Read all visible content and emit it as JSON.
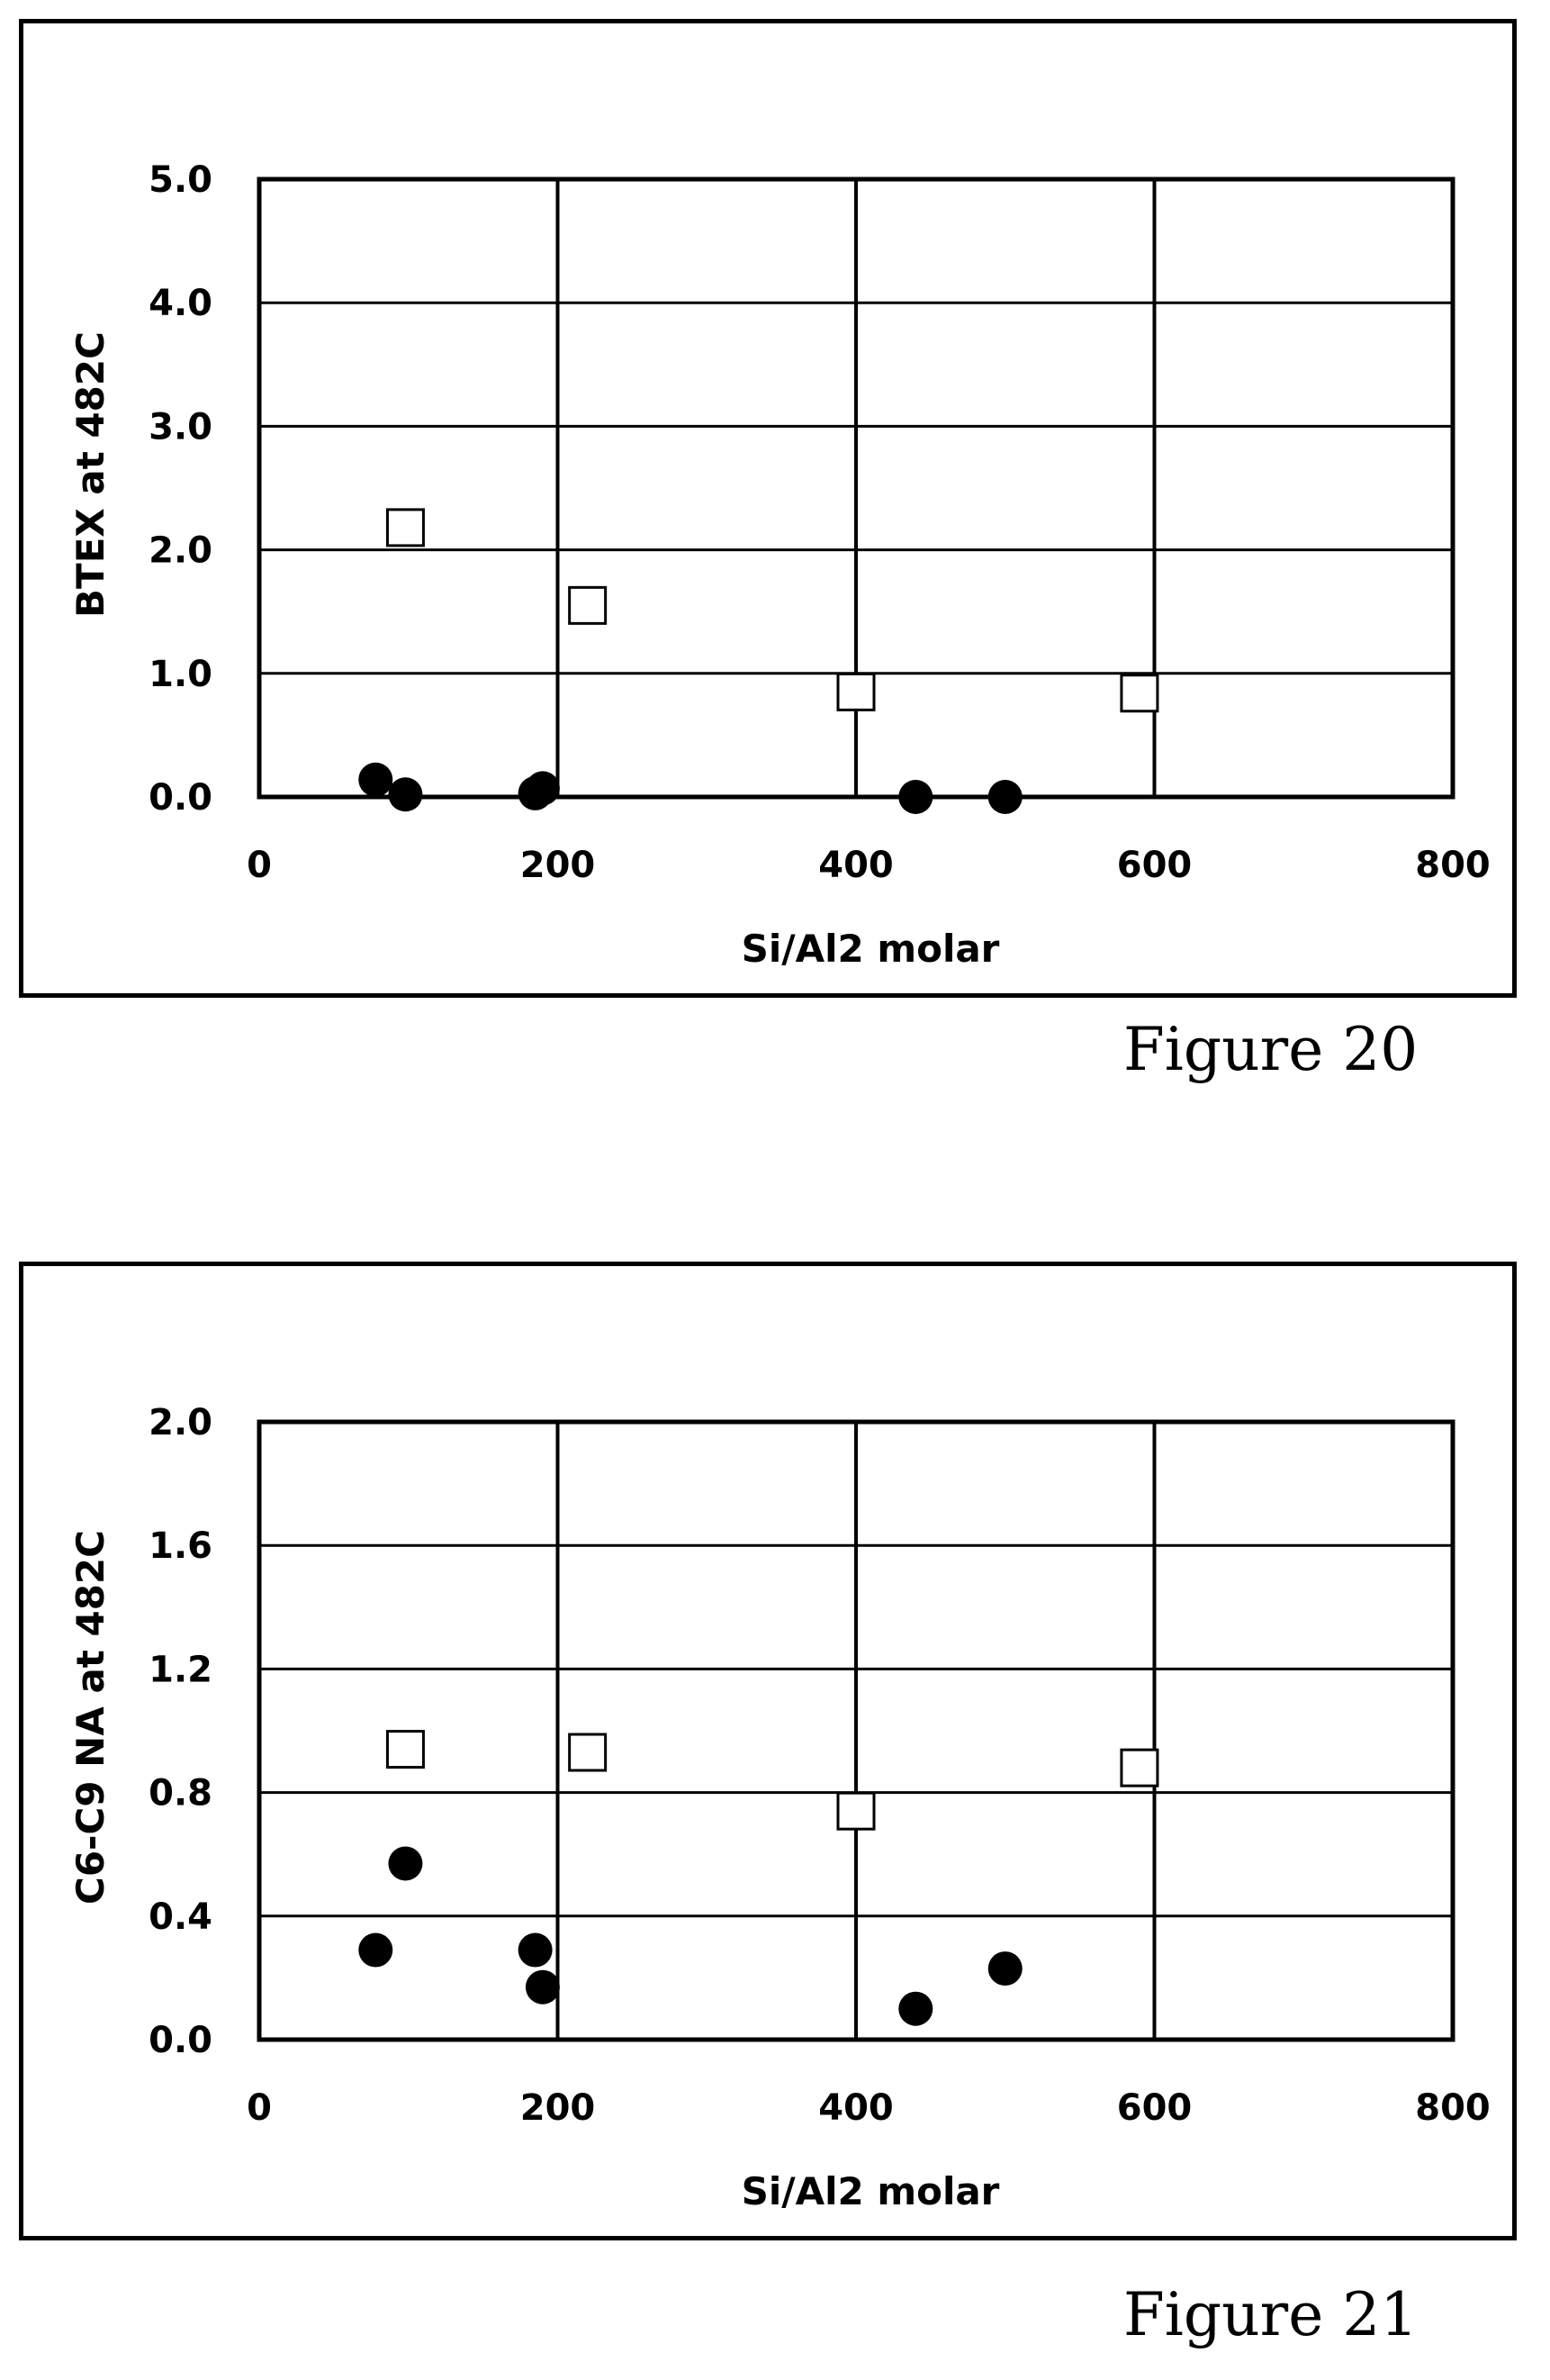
{
  "figures": [
    {
      "caption": "Figure 20",
      "chart_data": {
        "type": "scatter",
        "xlabel": "Si/Al2 molar",
        "ylabel": "BTEX at 482C",
        "xlim": [
          0,
          800
        ],
        "ylim": [
          0,
          5
        ],
        "x_ticks": [
          "0",
          "200",
          "400",
          "600",
          "800"
        ],
        "y_ticks": [
          "0.0",
          "1.0",
          "2.0",
          "3.0",
          "4.0",
          "5.0"
        ],
        "grid": true,
        "legend": "none",
        "series": [
          {
            "marker": "open-square",
            "points": [
              [
                98,
                2.18
              ],
              [
                220,
                1.55
              ],
              [
                400,
                0.85
              ],
              [
                590,
                0.84
              ]
            ]
          },
          {
            "marker": "filled-circle",
            "points": [
              [
                78,
                0.14
              ],
              [
                98,
                0.02
              ],
              [
                185,
                0.03
              ],
              [
                190,
                0.07
              ],
              [
                440,
                0.0
              ],
              [
                500,
                0.0
              ]
            ]
          }
        ]
      }
    },
    {
      "caption": "Figure 21",
      "chart_data": {
        "type": "scatter",
        "xlabel": "Si/Al2 molar",
        "ylabel": "C6-C9 NA at 482C",
        "xlim": [
          0,
          800
        ],
        "ylim": [
          0,
          2.0
        ],
        "x_ticks": [
          "0",
          "200",
          "400",
          "600",
          "800"
        ],
        "y_ticks": [
          "0.0",
          "0.4",
          "0.8",
          "1.2",
          "1.6",
          "2.0"
        ],
        "grid": true,
        "legend": "none",
        "series": [
          {
            "marker": "open-square",
            "points": [
              [
                98,
                0.94
              ],
              [
                220,
                0.93
              ],
              [
                400,
                0.74
              ],
              [
                590,
                0.88
              ]
            ]
          },
          {
            "marker": "filled-circle",
            "points": [
              [
                78,
                0.29
              ],
              [
                98,
                0.57
              ],
              [
                185,
                0.29
              ],
              [
                190,
                0.17
              ],
              [
                440,
                0.1
              ],
              [
                500,
                0.23
              ]
            ]
          }
        ]
      }
    }
  ]
}
